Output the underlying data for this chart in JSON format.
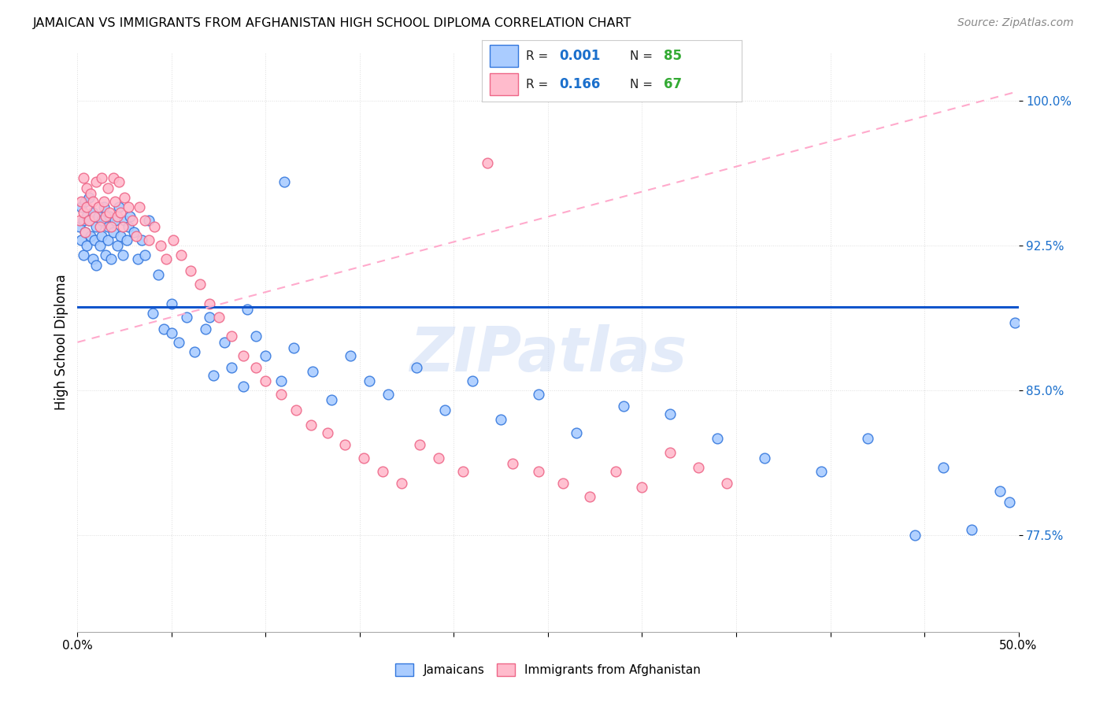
{
  "title": "JAMAICAN VS IMMIGRANTS FROM AFGHANISTAN HIGH SCHOOL DIPLOMA CORRELATION CHART",
  "source": "Source: ZipAtlas.com",
  "ylabel": "High School Diploma",
  "y_ticks": [
    0.775,
    0.85,
    0.925,
    1.0
  ],
  "y_tick_labels": [
    "77.5%",
    "85.0%",
    "92.5%",
    "100.0%"
  ],
  "x_min": 0.0,
  "x_max": 0.5,
  "y_min": 0.725,
  "y_max": 1.025,
  "color_jamaican_fill": "#aaccff",
  "color_jamaican_edge": "#3377dd",
  "color_afghanistan_fill": "#ffbbcc",
  "color_afghanistan_edge": "#ee6688",
  "color_trendline_jam": "#1155cc",
  "color_trendline_afg": "#ffaacc",
  "color_ytick": "#3377dd",
  "watermark": "ZIPatlas",
  "legend_r1": "R = ",
  "legend_v1": "0.001",
  "legend_n1_label": "N = ",
  "legend_n1": "85",
  "legend_r2": "R = ",
  "legend_v2": "0.166",
  "legend_n2_label": "N = ",
  "legend_n2": "67",
  "color_blue": "#1a6fcc",
  "color_green": "#33aa33",
  "jamaican_x": [
    0.001,
    0.002,
    0.002,
    0.003,
    0.003,
    0.004,
    0.004,
    0.005,
    0.005,
    0.006,
    0.006,
    0.007,
    0.008,
    0.008,
    0.009,
    0.01,
    0.01,
    0.011,
    0.012,
    0.013,
    0.013,
    0.014,
    0.015,
    0.016,
    0.016,
    0.017,
    0.018,
    0.019,
    0.02,
    0.021,
    0.022,
    0.023,
    0.024,
    0.025,
    0.026,
    0.027,
    0.028,
    0.03,
    0.032,
    0.034,
    0.036,
    0.038,
    0.04,
    0.043,
    0.046,
    0.05,
    0.054,
    0.058,
    0.062,
    0.068,
    0.072,
    0.078,
    0.082,
    0.088,
    0.095,
    0.1,
    0.108,
    0.115,
    0.125,
    0.135,
    0.145,
    0.155,
    0.165,
    0.18,
    0.195,
    0.21,
    0.225,
    0.245,
    0.265,
    0.29,
    0.315,
    0.34,
    0.365,
    0.395,
    0.42,
    0.445,
    0.46,
    0.475,
    0.49,
    0.495,
    0.498,
    0.05,
    0.07,
    0.09,
    0.11
  ],
  "jamaican_y": [
    0.935,
    0.928,
    0.945,
    0.938,
    0.92,
    0.932,
    0.948,
    0.94,
    0.925,
    0.938,
    0.95,
    0.93,
    0.942,
    0.918,
    0.928,
    0.935,
    0.915,
    0.94,
    0.925,
    0.938,
    0.93,
    0.945,
    0.92,
    0.935,
    0.928,
    0.94,
    0.918,
    0.932,
    0.938,
    0.925,
    0.945,
    0.93,
    0.92,
    0.938,
    0.928,
    0.935,
    0.94,
    0.932,
    0.918,
    0.928,
    0.92,
    0.938,
    0.89,
    0.91,
    0.882,
    0.895,
    0.875,
    0.888,
    0.87,
    0.882,
    0.858,
    0.875,
    0.862,
    0.852,
    0.878,
    0.868,
    0.855,
    0.872,
    0.86,
    0.845,
    0.868,
    0.855,
    0.848,
    0.862,
    0.84,
    0.855,
    0.835,
    0.848,
    0.828,
    0.842,
    0.838,
    0.825,
    0.815,
    0.808,
    0.825,
    0.775,
    0.81,
    0.778,
    0.798,
    0.792,
    0.885,
    0.88,
    0.888,
    0.892,
    0.958
  ],
  "afghanistan_x": [
    0.001,
    0.002,
    0.003,
    0.003,
    0.004,
    0.005,
    0.005,
    0.006,
    0.007,
    0.008,
    0.009,
    0.01,
    0.011,
    0.012,
    0.013,
    0.014,
    0.015,
    0.016,
    0.017,
    0.018,
    0.019,
    0.02,
    0.021,
    0.022,
    0.023,
    0.024,
    0.025,
    0.027,
    0.029,
    0.031,
    0.033,
    0.036,
    0.038,
    0.041,
    0.044,
    0.047,
    0.051,
    0.055,
    0.06,
    0.065,
    0.07,
    0.075,
    0.082,
    0.088,
    0.095,
    0.1,
    0.108,
    0.116,
    0.124,
    0.133,
    0.142,
    0.152,
    0.162,
    0.172,
    0.182,
    0.192,
    0.205,
    0.218,
    0.231,
    0.245,
    0.258,
    0.272,
    0.286,
    0.3,
    0.315,
    0.33,
    0.345
  ],
  "afghanistan_y": [
    0.938,
    0.948,
    0.942,
    0.96,
    0.932,
    0.945,
    0.955,
    0.938,
    0.952,
    0.948,
    0.94,
    0.958,
    0.945,
    0.935,
    0.96,
    0.948,
    0.94,
    0.955,
    0.942,
    0.935,
    0.96,
    0.948,
    0.94,
    0.958,
    0.942,
    0.935,
    0.95,
    0.945,
    0.938,
    0.93,
    0.945,
    0.938,
    0.928,
    0.935,
    0.925,
    0.918,
    0.928,
    0.92,
    0.912,
    0.905,
    0.895,
    0.888,
    0.878,
    0.868,
    0.862,
    0.855,
    0.848,
    0.84,
    0.832,
    0.828,
    0.822,
    0.815,
    0.808,
    0.802,
    0.822,
    0.815,
    0.808,
    0.968,
    0.812,
    0.808,
    0.802,
    0.795,
    0.808,
    0.8,
    0.818,
    0.81,
    0.802
  ]
}
